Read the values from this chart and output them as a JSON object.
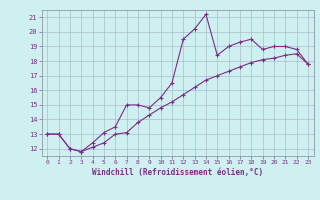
{
  "xlabel": "Windchill (Refroidissement éolien,°C)",
  "line1_x": [
    0,
    1,
    2,
    3,
    4,
    5,
    6,
    7,
    8,
    9,
    10,
    11,
    12,
    13,
    14,
    15,
    16,
    17,
    18,
    19,
    20,
    21,
    22,
    23
  ],
  "line1_y": [
    13,
    13,
    12,
    11.8,
    12.4,
    13.1,
    13.5,
    15.0,
    15.0,
    14.8,
    15.5,
    16.5,
    19.5,
    20.2,
    21.2,
    18.4,
    19.0,
    19.3,
    19.5,
    18.8,
    19.0,
    19.0,
    18.8,
    17.8
  ],
  "line2_x": [
    0,
    1,
    2,
    3,
    4,
    5,
    6,
    7,
    8,
    9,
    10,
    11,
    12,
    13,
    14,
    15,
    16,
    17,
    18,
    19,
    20,
    21,
    22,
    23
  ],
  "line2_y": [
    13,
    13,
    12,
    11.8,
    12.1,
    12.4,
    13.0,
    13.1,
    13.8,
    14.3,
    14.8,
    15.2,
    15.7,
    16.2,
    16.7,
    17.0,
    17.3,
    17.6,
    17.9,
    18.1,
    18.2,
    18.4,
    18.5,
    17.8
  ],
  "line_color": "#7b2d8b",
  "bg_color": "#cff0f0",
  "grid_color": "#aabbcc",
  "xlim": [
    -0.5,
    23.5
  ],
  "ylim": [
    11.5,
    21.5
  ],
  "yticks": [
    12,
    13,
    14,
    15,
    16,
    17,
    18,
    19,
    20,
    21
  ],
  "xticks": [
    0,
    1,
    2,
    3,
    4,
    5,
    6,
    7,
    8,
    9,
    10,
    11,
    12,
    13,
    14,
    15,
    16,
    17,
    18,
    19,
    20,
    21,
    22,
    23
  ],
  "tick_labelsize": 5,
  "xlabel_fontsize": 5.5
}
